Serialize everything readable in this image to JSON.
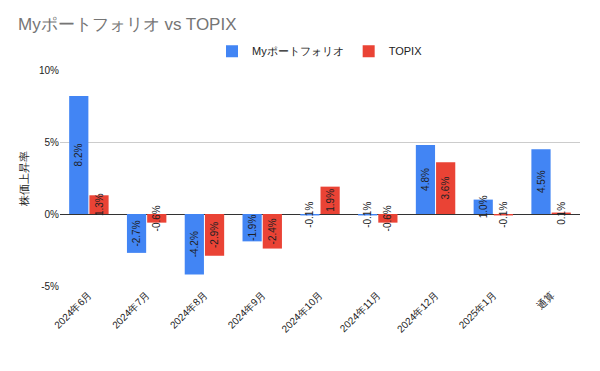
{
  "chart_data": {
    "type": "bar",
    "title": "Myポートフォリオ vs TOPIX",
    "y_label": "株価上昇率",
    "categories": [
      "2024年6月",
      "2024年7月",
      "2024年8月",
      "2024年9月",
      "2024年10月",
      "2024年11月",
      "2024年12月",
      "2025年1月",
      "通算"
    ],
    "series": [
      {
        "name": "Myポートフォリオ",
        "color": "#4285f4",
        "values": [
          8.2,
          -2.7,
          -4.2,
          -1.9,
          -0.1,
          -0.1,
          4.8,
          1.0,
          4.5
        ],
        "value_labels": [
          "8.2%",
          "-2.7%",
          "-4.2%",
          "-1.9%",
          "-0.1%",
          "-0.1%",
          "4.8%",
          "1.0%",
          "4.5%"
        ]
      },
      {
        "name": "TOPIX",
        "color": "#ea4335",
        "values": [
          1.3,
          -0.6,
          -2.9,
          -2.4,
          1.9,
          -0.6,
          3.6,
          -0.1,
          0.1
        ],
        "value_labels": [
          "1.3%",
          "-0.6%",
          "-2.9%",
          "-2.4%",
          "1.9%",
          "-0.6%",
          "3.6%",
          "-0.1%",
          "0.1%"
        ]
      }
    ],
    "ylim": [
      -5,
      10
    ],
    "yticks": [
      {
        "value": -5,
        "label": "-5%"
      },
      {
        "value": 0,
        "label": "0%"
      },
      {
        "value": 5,
        "label": "5%"
      },
      {
        "value": 10,
        "label": "10%"
      }
    ],
    "grid": true,
    "legend": "top",
    "data_labels": true
  }
}
